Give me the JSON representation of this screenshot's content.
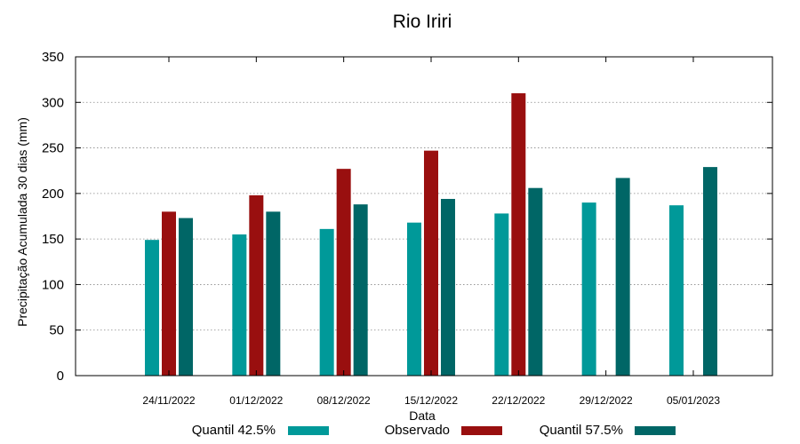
{
  "chart_data": {
    "type": "bar",
    "title": "Rio Iriri",
    "xlabel": "Data",
    "ylabel": "Precipitação Acumulada 30 dias (mm)",
    "ylim": [
      0,
      350
    ],
    "yticks": [
      0,
      50,
      100,
      150,
      200,
      250,
      300,
      350
    ],
    "grid": true,
    "legend_position": "bottom",
    "categories": [
      "24/11/2022",
      "01/12/2022",
      "08/12/2022",
      "15/12/2022",
      "22/12/2022",
      "29/12/2022",
      "05/01/2023"
    ],
    "series": [
      {
        "name": "Quantil 42.5%",
        "color": "#009999",
        "values": [
          149,
          155,
          161,
          168,
          178,
          190,
          187
        ]
      },
      {
        "name": "Observado",
        "color": "#990f0f",
        "values": [
          180,
          198,
          227,
          247,
          310,
          null,
          null
        ]
      },
      {
        "name": "Quantil 57.5%",
        "color": "#006666",
        "values": [
          173,
          180,
          188,
          194,
          206,
          217,
          229
        ]
      }
    ]
  }
}
